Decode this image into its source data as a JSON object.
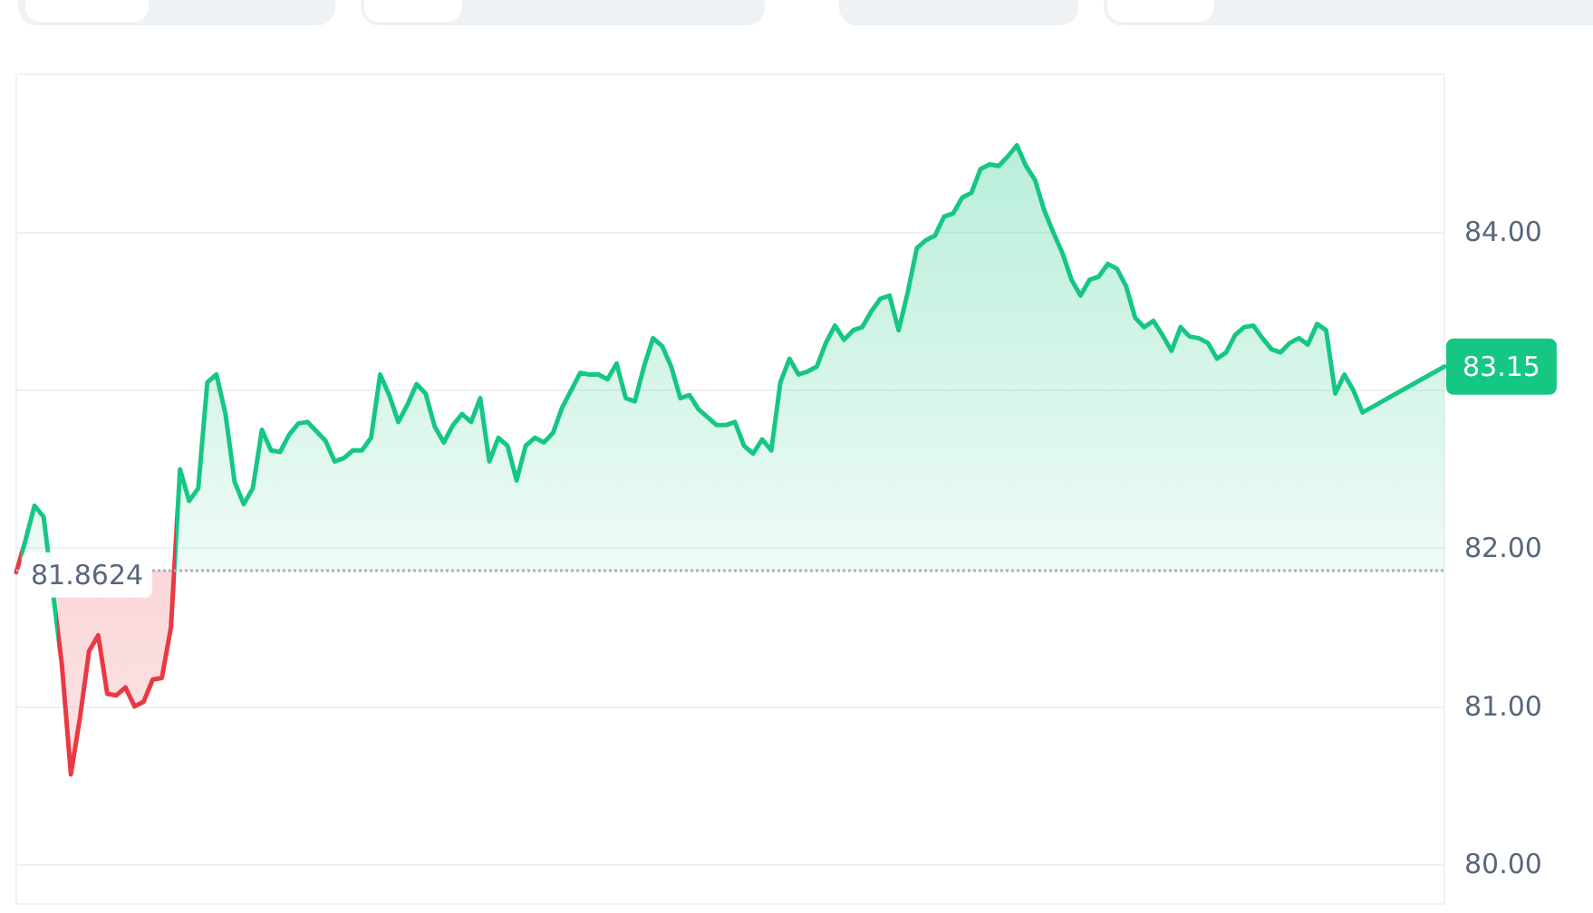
{
  "chart_data": {
    "type": "area",
    "categories": [
      null,
      null,
      null,
      null,
      null,
      null,
      null,
      null,
      null,
      null,
      null,
      null,
      null,
      null,
      null,
      null,
      null,
      null,
      null,
      null,
      null,
      null,
      null,
      null,
      null,
      null,
      null,
      null,
      null,
      null,
      null,
      null,
      null,
      null,
      null,
      null,
      null,
      null,
      null,
      null,
      null,
      null,
      null,
      null,
      null,
      null,
      null,
      null,
      null,
      null,
      null,
      null,
      null,
      null,
      null,
      null,
      null,
      null,
      null,
      null,
      null,
      null,
      null,
      null,
      null,
      null,
      null,
      null,
      null,
      null,
      null,
      null,
      null,
      null,
      null,
      null,
      null,
      null,
      null,
      null,
      null,
      null,
      null,
      null,
      null,
      null,
      null,
      null,
      null,
      null,
      null,
      null,
      null,
      null,
      null,
      null,
      null,
      null,
      null,
      null,
      null,
      null,
      null,
      null,
      null,
      null,
      null,
      null,
      null,
      null,
      null,
      null,
      null,
      null,
      null,
      null,
      null,
      null,
      null,
      null,
      null,
      null,
      null,
      null,
      null,
      null,
      null,
      null,
      null,
      null,
      null,
      null,
      null,
      null,
      null,
      null,
      null,
      null,
      null,
      null,
      null,
      null,
      null,
      null,
      null,
      null,
      null,
      null,
      null,
      null,
      null,
      null,
      null,
      null,
      null,
      null,
      null,
      null
    ],
    "series": [
      {
        "color": "#16c784",
        "values": [
          81.85,
          82.05,
          82.27,
          82.2,
          null,
          81.27,
          80.57,
          80.93,
          81.35,
          81.45,
          81.08,
          81.07,
          81.12,
          81.0,
          81.03,
          81.17,
          81.18,
          81.5,
          82.5,
          82.3,
          82.38,
          83.05,
          83.1,
          82.85,
          82.42,
          82.28,
          82.38,
          82.75,
          82.62,
          82.61,
          82.72,
          82.79,
          82.8,
          82.74,
          82.68,
          82.55,
          82.57,
          82.62,
          82.62,
          82.7,
          83.1,
          82.97,
          82.8,
          82.91,
          83.04,
          82.98,
          82.77,
          82.67,
          82.78,
          82.85,
          82.8,
          82.95,
          82.55,
          82.7,
          82.65,
          82.43,
          82.65,
          82.7,
          82.67,
          82.73,
          82.89,
          83.0,
          83.11,
          83.1,
          83.1,
          83.07,
          83.17,
          82.95,
          82.93,
          83.15,
          83.33,
          83.28,
          83.15,
          82.95,
          82.97,
          82.88,
          82.83,
          82.78,
          82.78,
          82.8,
          82.65,
          82.6,
          82.69,
          82.62,
          83.05,
          83.2,
          83.1,
          83.12,
          83.15,
          83.3,
          83.41,
          83.32,
          83.38,
          83.4,
          83.5,
          83.58,
          83.6,
          83.38,
          83.62,
          83.9,
          83.95,
          83.98,
          84.1,
          84.12,
          84.22,
          84.25,
          84.4,
          84.43,
          84.42,
          84.48,
          84.55,
          84.42,
          84.33,
          84.14,
          84.0,
          83.87,
          83.7,
          83.6,
          83.7,
          83.72,
          83.8,
          83.77,
          83.66,
          83.46,
          83.4,
          83.44,
          83.35,
          83.25,
          83.4,
          83.34,
          83.33,
          83.3,
          83.2,
          83.24,
          83.35,
          83.4,
          83.41,
          83.33,
          83.26,
          83.24,
          83.3,
          83.33,
          83.29,
          83.42,
          83.38,
          82.98,
          83.1,
          83.0,
          82.86,
          null,
          null,
          null,
          null,
          null,
          null,
          null,
          null,
          83.15
        ],
        "colors": [
          "#ea3943",
          "#16c784",
          "#16c784",
          "#16c784",
          null,
          "#ea3943",
          "#ea3943",
          "#ea3943",
          "#ea3943",
          "#ea3943",
          "#ea3943",
          "#ea3943",
          "#ea3943",
          "#ea3943",
          "#ea3943",
          "#ea3943",
          "#ea3943",
          "#ea3943",
          "#16c784",
          "#16c784",
          "#16c784",
          "#16c784",
          "#16c784",
          "#16c784",
          "#16c784",
          "#16c784",
          "#16c784",
          "#16c784",
          "#16c784",
          "#16c784",
          "#16c784",
          "#16c784",
          "#16c784",
          "#16c784",
          "#16c784",
          "#16c784",
          "#16c784",
          "#16c784",
          "#16c784",
          "#16c784",
          "#16c784",
          "#16c784",
          "#16c784",
          "#16c784",
          "#16c784",
          "#16c784",
          "#16c784",
          "#16c784",
          "#16c784",
          "#16c784",
          "#16c784",
          "#16c784",
          "#16c784",
          "#16c784",
          "#16c784",
          "#16c784",
          "#16c784",
          "#16c784",
          "#16c784",
          "#16c784",
          "#16c784",
          "#16c784",
          "#16c784",
          "#16c784",
          "#16c784",
          "#16c784",
          "#16c784",
          "#16c784",
          "#16c784",
          "#16c784",
          "#16c784",
          "#16c784",
          "#16c784",
          "#16c784",
          "#16c784",
          "#16c784",
          "#16c784",
          "#16c784",
          "#16c784",
          "#16c784",
          "#16c784",
          "#16c784",
          "#16c784",
          "#16c784",
          "#16c784",
          "#16c784",
          "#16c784",
          "#16c784",
          "#16c784",
          "#16c784",
          "#16c784",
          "#16c784",
          "#16c784",
          "#16c784",
          "#16c784",
          "#16c784",
          "#16c784",
          "#16c784",
          "#16c784",
          "#16c784",
          "#16c784",
          "#16c784",
          "#16c784",
          "#16c784",
          "#16c784",
          "#16c784",
          "#16c784",
          "#16c784",
          "#16c784",
          "#16c784",
          "#16c784",
          "#16c784",
          "#16c784",
          "#16c784",
          "#16c784",
          "#16c784",
          "#16c784",
          "#16c784",
          "#16c784",
          "#16c784",
          "#16c784",
          "#16c784",
          "#16c784",
          "#16c784",
          "#16c784",
          "#16c784",
          "#16c784",
          "#16c784",
          "#16c784",
          "#16c784",
          "#16c784",
          "#16c784",
          "#16c784",
          "#16c784",
          "#16c784",
          "#16c784",
          "#16c784",
          "#16c784",
          "#16c784",
          "#16c784",
          "#16c784",
          "#16c784",
          "#16c784",
          "#16c784",
          "#16c784",
          "#16c784",
          "#16c784",
          "#16c784",
          "#16c784",
          null,
          null,
          null,
          null,
          null,
          null,
          null,
          null,
          "#16c784"
        ]
      }
    ],
    "ylim": [
      79.75,
      85
    ],
    "yticks": [
      {
        "value": 80,
        "label": "80.00"
      },
      {
        "value": 81,
        "label": "81.00"
      },
      {
        "value": 82,
        "label": "82.00"
      },
      {
        "value": 83,
        "label": null
      },
      {
        "value": 84,
        "label": "84.00"
      }
    ],
    "tick_labels": "y",
    "grid": "y",
    "marker": "none",
    "ref_lines": [
      {
        "axis": "y",
        "value": 81.8624,
        "label": "81.8624",
        "color": "#a6b0c3",
        "line_style": "dotted"
      }
    ],
    "annotations": [
      "83.15"
    ]
  }
}
